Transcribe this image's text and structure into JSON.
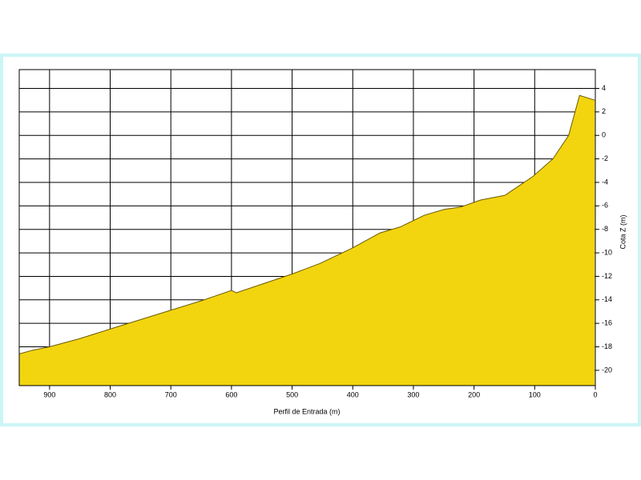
{
  "chart_data": {
    "type": "area",
    "x_label": "Perfil de Entrada  (m)",
    "y_label": "Cota Z (m)",
    "x": [
      950,
      929,
      900,
      850,
      801,
      751,
      701,
      651,
      600,
      592,
      546,
      500,
      454,
      401,
      355,
      322,
      282,
      249,
      222,
      189,
      149,
      103,
      70,
      44,
      26,
      1
    ],
    "series": [
      {
        "color": "#f2d50f",
        "values": [
          -18.6,
          -18.3,
          -18.0,
          -17.3,
          -16.5,
          -15.7,
          -14.9,
          -14.1,
          -13.2,
          -13.4,
          -12.6,
          -11.8,
          -10.9,
          -9.6,
          -8.3,
          -7.8,
          -6.8,
          -6.3,
          -6.1,
          -5.5,
          -5.1,
          -3.5,
          -2.0,
          0,
          3.4,
          3.0
        ]
      }
    ],
    "xlim": [
      950,
      0
    ],
    "xticks": [
      900,
      800,
      700,
      600,
      500,
      400,
      300,
      200,
      100,
      0
    ],
    "ylim": [
      -21.3,
      5.6
    ],
    "yticks": [
      4,
      2,
      0,
      -2,
      -4,
      -6,
      -8,
      -10,
      -12,
      -14,
      -16,
      -18,
      -20
    ],
    "grid": true
  }
}
